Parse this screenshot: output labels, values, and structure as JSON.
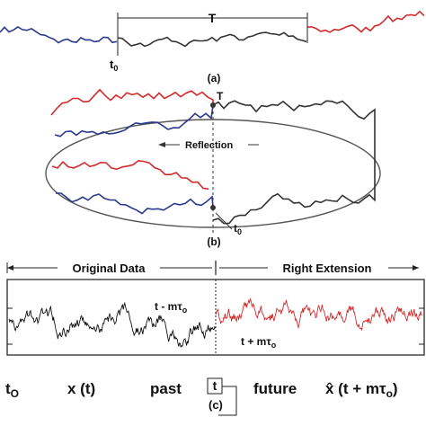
{
  "colors": {
    "blue": "#2b3a8c",
    "red": "#d42a2a",
    "dark": "#333333",
    "black": "#111111",
    "ellipse": "#555555",
    "box": "#2a2a2a"
  },
  "panel_a": {
    "period_label": "T",
    "t0_label": "t",
    "t0_sub": "0",
    "caption": "(a)"
  },
  "panel_b": {
    "top_label": "T",
    "reflection_label": "Reflection",
    "t0_label": "t",
    "t0_sub": "0",
    "caption": "(b)"
  },
  "panel_c": {
    "original_data_label": "Original Data",
    "right_extension_label": "Right Extension",
    "t_minus_label": "t - mτ",
    "t_minus_sub": "o",
    "t_plus_label": "t + mτ",
    "t_plus_sub": "o",
    "caption": "(c)"
  },
  "bottom_labels": {
    "t0": "t",
    "t0_sub": "O",
    "xt": "x (t)",
    "past": "past",
    "t": "t",
    "future": "future",
    "xhat": "x̂ (t + mτ",
    "xhat_sub": "o",
    "xhat_close": ")"
  }
}
